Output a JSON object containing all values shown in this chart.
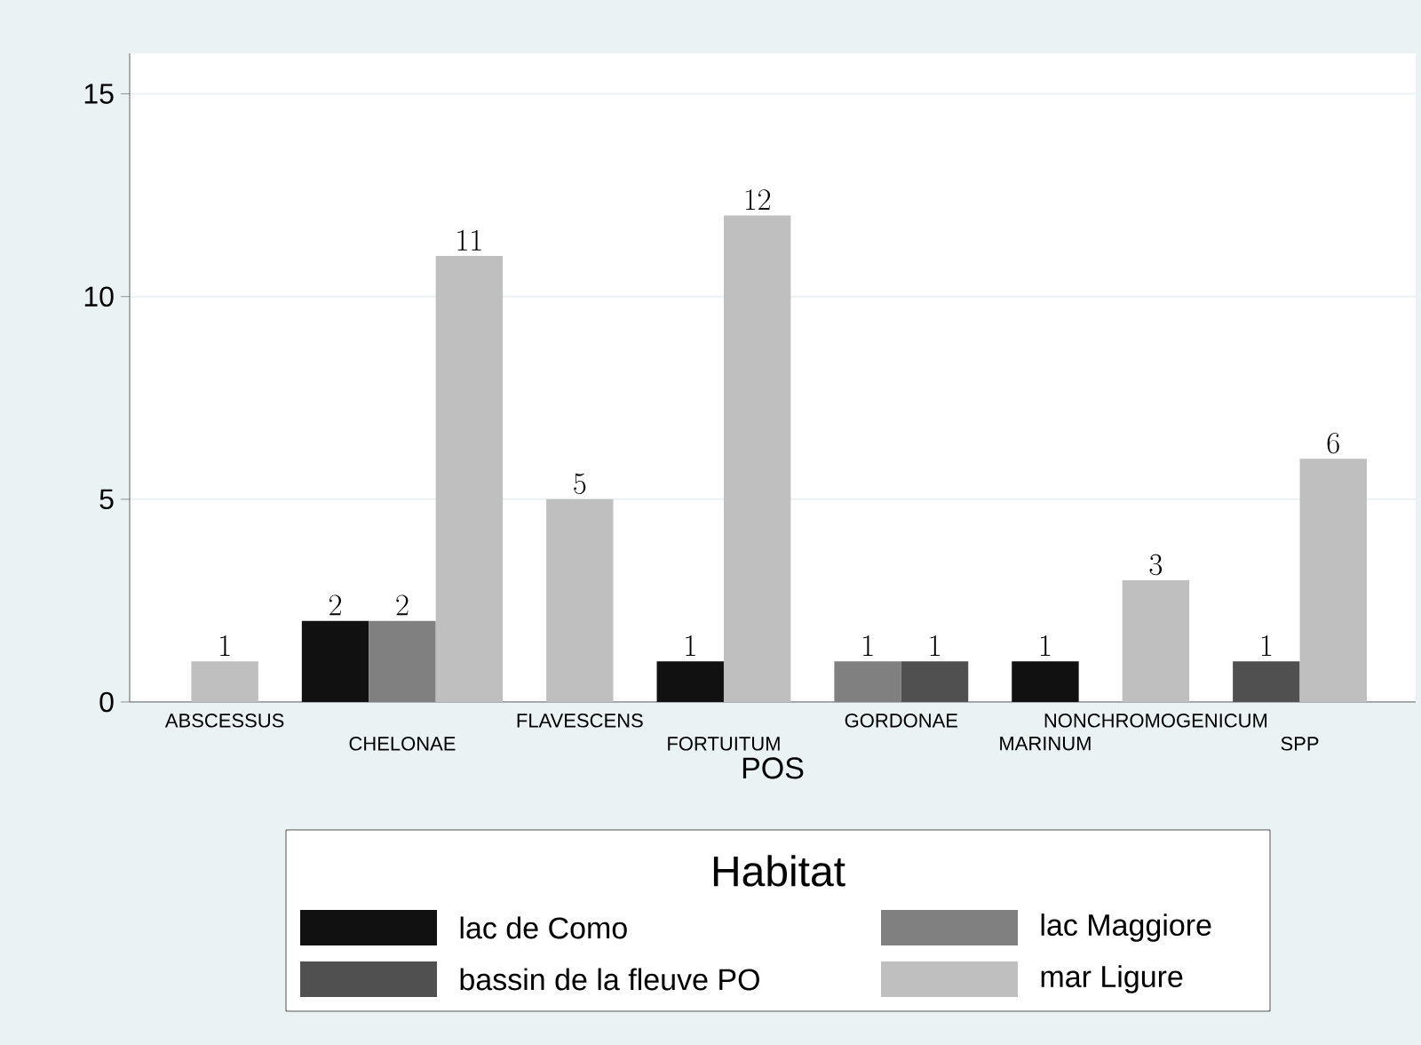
{
  "chart_data": {
    "type": "bar",
    "xlabel": "POS",
    "legend_title": "Habitat",
    "legend": "bottom",
    "grid": "y",
    "data_labels": true,
    "categories": [
      "ABSCESSUS",
      "CHELONAE",
      "FLAVESCENS",
      "FORTUITUM",
      "GORDONAE",
      "MARINUM",
      "NONCHROMOGENICUM",
      "SPP"
    ],
    "ylim": [
      0,
      16
    ],
    "yticks": [
      0,
      5,
      10,
      15
    ],
    "series": [
      {
        "name": "lac de Como",
        "color": "#111111",
        "values": [
          null,
          2,
          null,
          1,
          null,
          1,
          null,
          null
        ]
      },
      {
        "name": "lac Maggiore",
        "color": "#808080",
        "values": [
          null,
          2,
          null,
          null,
          1,
          null,
          null,
          null
        ]
      },
      {
        "name": "bassin de la fleuve PO",
        "color": "#505050",
        "values": [
          null,
          null,
          null,
          null,
          1,
          null,
          null,
          1
        ]
      },
      {
        "name": "mar Ligure",
        "color": "#bfbfbf",
        "values": [
          1,
          11,
          5,
          12,
          null,
          null,
          3,
          6
        ]
      }
    ]
  }
}
